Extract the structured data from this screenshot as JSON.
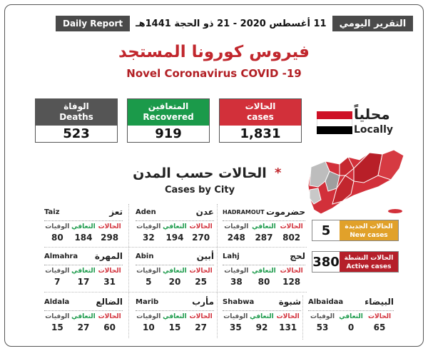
{
  "header": {
    "daily_report": "Daily Report",
    "date": "11 أغسطس 2020 - 21 ذو الحجة 1441هـ",
    "daily_report_ar": "التقرير اليومي"
  },
  "title": {
    "arabic": "فيروس كورونا المستجد",
    "english": "Novel Coronavirus COVID -19"
  },
  "stats": {
    "deaths": {
      "label_ar": "الوفاة",
      "label_en": "Deaths",
      "value": "523",
      "color": "#555555"
    },
    "recovered": {
      "label_ar": "المتعافين",
      "label_en": "Recovered",
      "value": "919",
      "color": "#1b9a4a"
    },
    "cases": {
      "label_ar": "الحالات",
      "label_en": "cases",
      "value": "1,831",
      "color": "#d2303a"
    }
  },
  "locally": {
    "arabic": "محلياً",
    "english": "Locally"
  },
  "section": {
    "arabic": "الحالات حسب المدن",
    "star": "*",
    "english": "Cases by City"
  },
  "column_labels": {
    "deaths": "الوفيات",
    "recovered": "التعافي",
    "cases": "الحالات"
  },
  "cities": [
    {
      "en": "Taiz",
      "ar": "تعز",
      "deaths": "80",
      "recovered": "184",
      "cases": "298"
    },
    {
      "en": "Aden",
      "ar": "عدن",
      "deaths": "32",
      "recovered": "194",
      "cases": "270"
    },
    {
      "en": "HADRAMOUT",
      "ar": "حضرموت",
      "deaths": "248",
      "recovered": "287",
      "cases": "802"
    },
    {
      "en": "Almahra",
      "ar": "المهرة",
      "deaths": "7",
      "recovered": "17",
      "cases": "31"
    },
    {
      "en": "Abin",
      "ar": "أبين",
      "deaths": "5",
      "recovered": "20",
      "cases": "25"
    },
    {
      "en": "Lahj",
      "ar": "لحج",
      "deaths": "38",
      "recovered": "80",
      "cases": "128"
    },
    {
      "en": "Aldala",
      "ar": "الضالع",
      "deaths": "15",
      "recovered": "27",
      "cases": "60"
    },
    {
      "en": "Marib",
      "ar": "مأرب",
      "deaths": "10",
      "recovered": "15",
      "cases": "27"
    },
    {
      "en": "Shabwa",
      "ar": "شبوة",
      "deaths": "35",
      "recovered": "92",
      "cases": "131"
    },
    {
      "en": "Albaidaa",
      "ar": "البيضاء",
      "deaths": "53",
      "recovered": "0",
      "cases": "65"
    }
  ],
  "new_cases": {
    "value": "5",
    "label_ar": "الحالات الجديدة",
    "label_en": "New cases",
    "color": "#e1a12a"
  },
  "active_cases": {
    "value": "380",
    "label_ar": "الحالات النشطة",
    "label_en": "Active cases",
    "color": "#b51f2a"
  },
  "flag_colors": [
    "#ce1126",
    "#ffffff",
    "#000000"
  ]
}
